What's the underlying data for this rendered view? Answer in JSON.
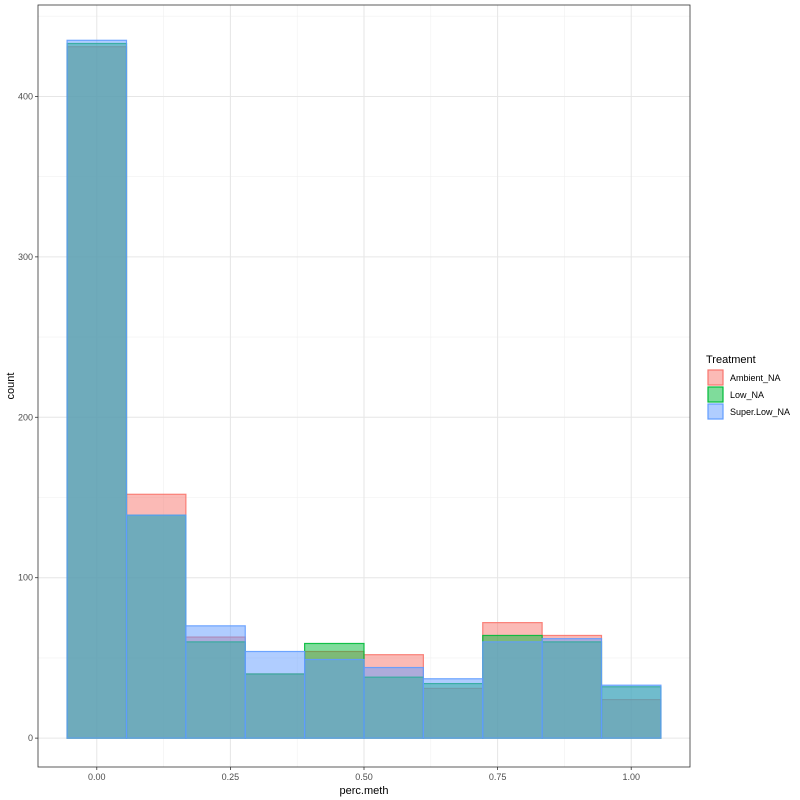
{
  "chart_data": {
    "type": "histogram",
    "xlabel": "perc.meth",
    "ylabel": "count",
    "xlim": [
      -0.11,
      1.11
    ],
    "ylim": [
      -18,
      457
    ],
    "x_ticks": [
      0.0,
      0.25,
      0.5,
      0.75,
      1.0
    ],
    "x_tick_labels": [
      "0.00",
      "0.25",
      "0.50",
      "0.75",
      "1.00"
    ],
    "y_ticks": [
      0,
      100,
      200,
      300,
      400
    ],
    "y_tick_labels": [
      "0",
      "100",
      "200",
      "300",
      "400"
    ],
    "bins": [
      [
        -0.0556,
        0.0556
      ],
      [
        0.0556,
        0.1667
      ],
      [
        0.1667,
        0.2778
      ],
      [
        0.2778,
        0.3889
      ],
      [
        0.3889,
        0.5
      ],
      [
        0.5,
        0.6111
      ],
      [
        0.6111,
        0.7222
      ],
      [
        0.7222,
        0.8333
      ],
      [
        0.8333,
        0.9444
      ],
      [
        0.9444,
        1.0556
      ]
    ],
    "grid": true,
    "legend_position": "right",
    "legend_title": "Treatment",
    "series": [
      {
        "name": "Ambient_NA",
        "fill": "#F8766D",
        "stroke": "#F8766D",
        "counts": [
          431,
          152,
          63,
          40,
          54,
          52,
          31,
          72,
          64,
          24
        ]
      },
      {
        "name": "Low_NA",
        "fill": "#00BA38",
        "stroke": "#00BA38",
        "counts": [
          433,
          139,
          60,
          40,
          59,
          38,
          34,
          64,
          60,
          32
        ]
      },
      {
        "name": "Super.Low_NA",
        "fill": "#619CFF",
        "stroke": "#619CFF",
        "counts": [
          435,
          139,
          70,
          54,
          49,
          44,
          37,
          60,
          62,
          33
        ]
      }
    ]
  }
}
